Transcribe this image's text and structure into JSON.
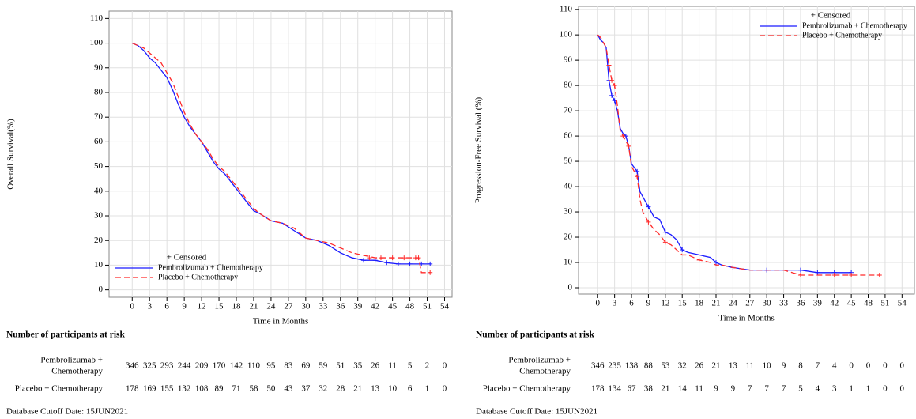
{
  "chart_data": [
    {
      "type": "line",
      "y_label": "Overall Survival(%)",
      "x_label": "Time in Months",
      "xlim": [
        -4,
        55.3
      ],
      "ylim": [
        -3,
        113
      ],
      "xticks": [
        0,
        3,
        6,
        9,
        12,
        15,
        18,
        21,
        24,
        27,
        30,
        33,
        36,
        39,
        42,
        45,
        48,
        51,
        54
      ],
      "yticks": [
        0,
        10,
        20,
        30,
        40,
        50,
        60,
        70,
        80,
        90,
        100,
        110
      ],
      "grid": true,
      "legend": "lower left",
      "legend_title": "+ Censored",
      "series": [
        {
          "name": "Pembrolizumab + Chemotherapy",
          "color": "#1a1aff",
          "dash": false,
          "x": [
            0,
            1,
            2,
            3,
            4,
            5,
            6,
            7,
            8,
            9,
            10,
            11,
            12,
            13,
            14,
            15,
            16,
            17,
            18,
            19,
            20,
            21,
            22,
            24,
            26,
            28,
            30,
            32,
            34,
            36,
            38,
            40,
            42,
            44,
            46,
            48,
            50,
            51.5
          ],
          "values": [
            100,
            99,
            97,
            94,
            92,
            89,
            86,
            81,
            75,
            70,
            66,
            63,
            60,
            56,
            52,
            49,
            47,
            44,
            41,
            38,
            35,
            32,
            31,
            28,
            27,
            24,
            21,
            20,
            18,
            15,
            13,
            12,
            12,
            11,
            10.5,
            10.5,
            10.5,
            10.5
          ],
          "censored_x": [
            40,
            42,
            44,
            46,
            48,
            50,
            51.5
          ],
          "censored_y": [
            12,
            12,
            11,
            10.5,
            10.5,
            10.5,
            10.5
          ]
        },
        {
          "name": "Placebo + Chemotherapy",
          "color": "#ff2a2a",
          "dash": true,
          "x": [
            0,
            1,
            2,
            3,
            4,
            5,
            6,
            7,
            8,
            9,
            10,
            11,
            12,
            13,
            14,
            15,
            16,
            17,
            18,
            19,
            20,
            21,
            22,
            24,
            26,
            28,
            30,
            32,
            34,
            36,
            38,
            40,
            42,
            44,
            46,
            48,
            49.5,
            50,
            51.5
          ],
          "values": [
            100,
            99,
            98,
            96,
            94,
            92,
            88,
            84,
            78,
            72,
            67,
            63,
            60,
            57,
            53,
            50,
            48,
            45,
            42,
            39,
            36,
            33,
            31,
            28,
            27,
            25,
            21,
            20,
            19,
            17,
            15,
            14,
            13,
            13,
            13,
            13,
            13,
            7,
            7
          ],
          "censored_x": [
            41,
            43,
            45,
            47,
            49,
            49.5,
            51.5
          ],
          "censored_y": [
            13,
            13,
            13,
            13,
            13,
            13,
            7
          ]
        }
      ],
      "risk_table": {
        "title": "Number of participants at risk",
        "rows": [
          {
            "label": [
              "Pembrolizumab +",
              "Chemotherapy"
            ],
            "values": [
              346,
              325,
              293,
              244,
              209,
              170,
              142,
              110,
              95,
              83,
              69,
              59,
              51,
              35,
              26,
              11,
              5,
              2,
              0
            ]
          },
          {
            "label": [
              "Placebo + Chemotherapy"
            ],
            "values": [
              178,
              169,
              155,
              132,
              108,
              89,
              71,
              58,
              50,
              43,
              37,
              32,
              28,
              21,
              13,
              10,
              6,
              1,
              0
            ]
          }
        ]
      },
      "footnote": "Database Cutoff Date: 15JUN2021"
    },
    {
      "type": "line",
      "y_label": "Progression-Free Survival (%)",
      "x_label": "Time in Months",
      "xlim": [
        -3.4,
        56.2
      ],
      "ylim": [
        -2.5,
        111.3
      ],
      "xticks": [
        0,
        3,
        6,
        9,
        12,
        15,
        18,
        21,
        24,
        27,
        30,
        33,
        36,
        39,
        42,
        45,
        48,
        51,
        54
      ],
      "yticks": [
        0,
        10,
        20,
        30,
        40,
        50,
        60,
        70,
        80,
        90,
        100,
        110
      ],
      "grid": true,
      "legend": "upper right",
      "legend_title": "+ Censored",
      "series": [
        {
          "name": "Pembrolizumab + Chemotherapy",
          "color": "#1a1aff",
          "dash": false,
          "x": [
            0,
            0.5,
            1,
            1.5,
            2,
            2.5,
            3,
            3.5,
            4,
            4.5,
            5,
            5.5,
            6,
            7,
            7.5,
            8,
            9,
            10,
            11,
            12,
            13,
            14,
            15,
            16,
            18,
            20,
            21,
            22,
            24,
            27,
            30,
            33,
            36,
            39,
            42,
            45
          ],
          "values": [
            100,
            98,
            97,
            95,
            82,
            76,
            74,
            70,
            63,
            61,
            60,
            56,
            49,
            46,
            38,
            36,
            32,
            28,
            27,
            22,
            21,
            19,
            15,
            14,
            13,
            12,
            10,
            9,
            8,
            7,
            7,
            7,
            7,
            6,
            6,
            6
          ],
          "censored_x": [
            2,
            2.5,
            3,
            5,
            7,
            9,
            12,
            15,
            21,
            24,
            30,
            36,
            39,
            42,
            45
          ],
          "censored_y": [
            82,
            76,
            74,
            60,
            46,
            32,
            22,
            15,
            10,
            8,
            7,
            7,
            6,
            6,
            6
          ]
        },
        {
          "name": "Placebo + Chemotherapy",
          "color": "#ff2a2a",
          "dash": true,
          "x": [
            0,
            0.5,
            1,
            1.5,
            2,
            2.5,
            3,
            3.5,
            4,
            4.5,
            5,
            5.5,
            6,
            7,
            7.5,
            8,
            9,
            10,
            11,
            12,
            13,
            14,
            15,
            16,
            18,
            20,
            21,
            22,
            24,
            27,
            30,
            33,
            36,
            39,
            42,
            45,
            48,
            50
          ],
          "values": [
            100,
            99,
            97,
            95,
            88,
            82,
            80,
            72,
            62,
            60,
            58,
            56,
            48,
            44,
            35,
            30,
            26,
            23,
            21,
            18,
            17,
            15,
            13,
            13,
            11,
            10,
            9,
            9,
            8,
            7,
            7,
            7,
            5,
            5,
            5,
            5,
            5,
            5
          ],
          "censored_x": [
            2,
            2.5,
            3,
            4.5,
            5.5,
            7,
            9,
            12,
            18,
            36,
            42,
            45,
            50
          ],
          "censored_y": [
            88,
            82,
            80,
            60,
            56,
            44,
            26,
            18,
            11,
            5,
            5,
            5,
            5
          ]
        }
      ],
      "risk_table": {
        "title": "Number of participants at risk",
        "rows": [
          {
            "label": [
              "Pembrolizumab +",
              "Chemotherapy"
            ],
            "values": [
              346,
              235,
              138,
              88,
              53,
              32,
              26,
              21,
              13,
              11,
              10,
              9,
              8,
              7,
              4,
              0,
              0,
              0,
              0
            ]
          },
          {
            "label": [
              "Placebo + Chemotherapy"
            ],
            "values": [
              178,
              134,
              67,
              38,
              21,
              14,
              11,
              9,
              9,
              7,
              7,
              7,
              5,
              4,
              3,
              1,
              1,
              0,
              0
            ]
          }
        ]
      },
      "footnote": "Database Cutoff Date: 15JUN2021"
    }
  ]
}
